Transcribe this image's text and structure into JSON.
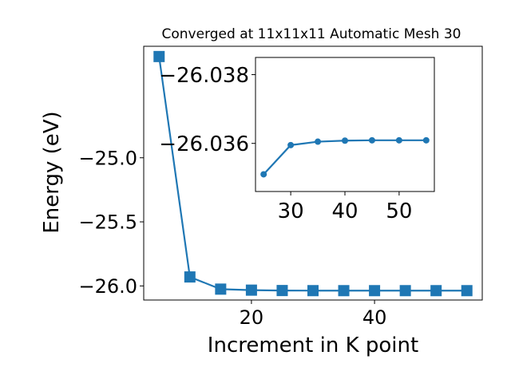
{
  "chart_data": [
    {
      "type": "line",
      "title": "Converged at 11x11x11 Automatic Mesh 30",
      "xlabel": "Increment in K point",
      "ylabel": "Energy (eV)",
      "x": [
        5,
        10,
        15,
        20,
        25,
        30,
        35,
        40,
        45,
        50,
        55
      ],
      "series": [
        {
          "values": [
            -24.21,
            -25.93,
            -26.025,
            -26.033,
            -26.036,
            -26.0368,
            -26.0369,
            -26.0369,
            -26.0369,
            -26.0369,
            -26.0369
          ]
        }
      ],
      "xlim": [
        2.5,
        57.5
      ],
      "ylim": [
        -26.11,
        -24.13
      ],
      "xticks": [
        20,
        40
      ],
      "xtick_labels": [
        "20",
        "40"
      ],
      "yticks": [
        -25.0,
        -25.5,
        -26.0
      ],
      "ytick_labels": [
        "−25.0",
        "−25.5",
        "−26.0"
      ],
      "marker": "square",
      "color": "#1f77b4",
      "grid": false
    },
    {
      "type": "line",
      "title": "",
      "xlabel": "",
      "ylabel": "",
      "x": [
        25,
        30,
        35,
        40,
        45,
        50,
        55
      ],
      "series": [
        {
          "values": [
            -26.0351,
            -26.03595,
            -26.03605,
            -26.03608,
            -26.03609,
            -26.03609,
            -26.03609
          ]
        }
      ],
      "xlim": [
        23.5,
        56.5
      ],
      "ylim": [
        -26.0346,
        -26.0385
      ],
      "xticks": [
        30,
        40,
        50
      ],
      "xtick_labels": [
        "30",
        "40",
        "50"
      ],
      "yticks": [
        -26.038,
        -26.036
      ],
      "ytick_labels": [
        "−26.038",
        "−26.036"
      ],
      "marker": "circle",
      "color": "#1f77b4",
      "grid": false
    }
  ]
}
